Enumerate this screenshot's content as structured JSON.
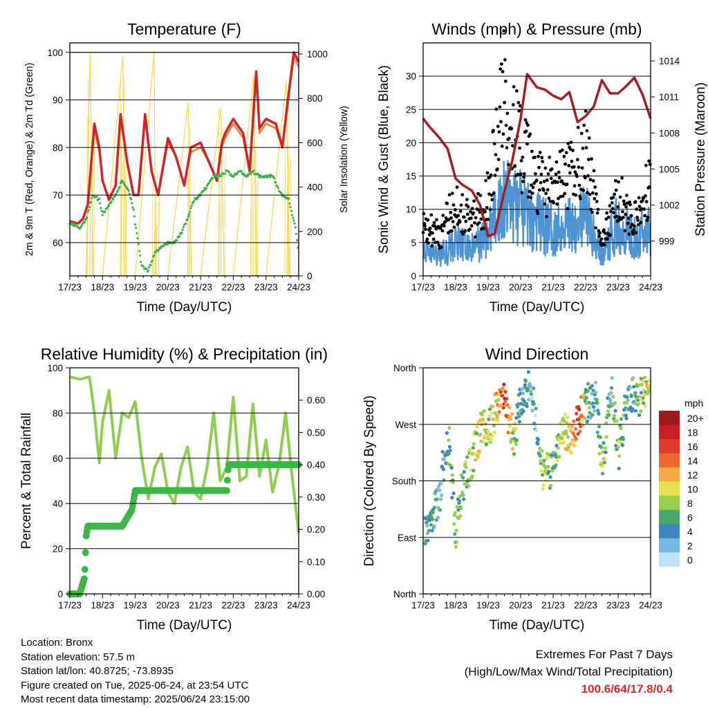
{
  "chart_data": [
    {
      "type": "line",
      "title": "Temperature (F)",
      "xlabel": "Time (Day/UTC)",
      "ylabel": "2m & 9m T (Red, Orange) & 2m Td (Green)",
      "ylabel_right": "Solar Insolation (Yellow)",
      "x_ticks": [
        "17/23",
        "18/23",
        "19/23",
        "20/23",
        "21/23",
        "22/23",
        "23/23",
        "24/23"
      ],
      "xlim": [
        0,
        7
      ],
      "ylim": [
        53,
        102
      ],
      "yticks": [
        60,
        70,
        80,
        90,
        100
      ],
      "ylim_right": [
        0,
        1050
      ],
      "yticks_right": [
        0,
        200,
        400,
        600,
        800,
        1000
      ],
      "grid": true,
      "colors": {
        "temp2m": "#d2232a",
        "temp9m": "#f07f2a",
        "dewpoint": "#3fae49",
        "solar": "#f6d84c"
      },
      "series": [
        {
          "key": "temp2m",
          "x": [
            0,
            0.25,
            0.4,
            0.55,
            0.75,
            0.9,
            1.0,
            1.2,
            1.4,
            1.55,
            1.75,
            1.95,
            2.1,
            2.3,
            2.5,
            2.7,
            3.0,
            3.25,
            3.5,
            3.7,
            4.0,
            4.25,
            4.5,
            4.65,
            4.75,
            5.0,
            5.3,
            5.5,
            5.7,
            5.8,
            6.0,
            6.3,
            6.5,
            6.65,
            6.85,
            7.0
          ],
          "y": [
            64.5,
            64,
            65,
            68,
            85,
            80,
            73,
            69,
            72,
            87,
            77,
            70,
            70,
            87,
            75,
            70,
            82,
            78,
            72,
            80,
            81,
            77,
            73,
            81,
            83,
            86,
            83,
            75,
            96,
            84,
            86,
            85,
            80,
            89,
            100,
            98
          ]
        },
        {
          "key": "temp9m",
          "x": [
            0,
            0.25,
            0.4,
            0.55,
            0.75,
            0.9,
            1.0,
            1.2,
            1.4,
            1.55,
            1.75,
            1.95,
            2.1,
            2.3,
            2.5,
            2.7,
            3.0,
            3.25,
            3.5,
            3.7,
            4.0,
            4.25,
            4.5,
            4.65,
            4.75,
            5.0,
            5.3,
            5.5,
            5.7,
            5.8,
            6.0,
            6.3,
            6.5,
            6.65,
            6.85,
            7.0
          ],
          "y": [
            64.5,
            64,
            65,
            68,
            84,
            79,
            73,
            69,
            72,
            86,
            77,
            70,
            70,
            86,
            75,
            70,
            81,
            78,
            72,
            79,
            80,
            77,
            73,
            80,
            82,
            85,
            82,
            75,
            95,
            83,
            85,
            84,
            80,
            88,
            99,
            97
          ]
        },
        {
          "key": "dewpoint",
          "x": [
            0,
            0.3,
            0.5,
            0.7,
            0.9,
            1.0,
            1.2,
            1.4,
            1.6,
            1.8,
            1.95,
            2.0,
            2.2,
            2.4,
            2.6,
            2.8,
            3.0,
            3.2,
            3.4,
            3.6,
            3.8,
            4.0,
            4.2,
            4.4,
            4.6,
            4.8,
            5.0,
            5.2,
            5.4,
            5.6,
            5.8,
            6.0,
            6.2,
            6.4,
            6.5,
            6.7,
            6.9,
            7.0
          ],
          "y": [
            64,
            63,
            65,
            70,
            69,
            66,
            68,
            70,
            73,
            71,
            67,
            64,
            55,
            54,
            58,
            59,
            60,
            60,
            62,
            65,
            69,
            70,
            72,
            74,
            74,
            75,
            74,
            75,
            74,
            75,
            74,
            74,
            74,
            71,
            70,
            69,
            63,
            58
          ]
        },
        {
          "key": "solar",
          "x": [
            0,
            0.5,
            0.62,
            0.72,
            1.0,
            1.62,
            1.72,
            2.0,
            2.58,
            2.62,
            3.0,
            3.62,
            3.72,
            4.0,
            4.62,
            4.72,
            5.0,
            5.62,
            5.72,
            6.0,
            6.62,
            6.72,
            7.0
          ],
          "y": [
            0,
            0,
            1000,
            0,
            0,
            990,
            0,
            0,
            1010,
            0,
            0,
            780,
            0,
            0,
            760,
            0,
            0,
            900,
            0,
            0,
            880,
            0,
            0
          ]
        }
      ]
    },
    {
      "type": "scatter",
      "title": "Winds (mph) & Pressure (mb)",
      "xlabel": "Time (Day/UTC)",
      "ylabel": "Sonic Wind & Gust (Blue, Black)",
      "ylabel_right": "Station Pressure (Maroon)",
      "x_ticks": [
        "17/23",
        "18/23",
        "19/23",
        "20/23",
        "21/23",
        "22/23",
        "23/23",
        "24/23"
      ],
      "xlim": [
        0,
        7
      ],
      "ylim": [
        0,
        35
      ],
      "yticks": [
        0,
        5,
        10,
        15,
        20,
        25,
        30
      ],
      "ylim_right": [
        996.1,
        1015.5
      ],
      "yticks_right": [
        999,
        1002,
        1005,
        1008,
        1011,
        1014
      ],
      "grid": true,
      "colors": {
        "wind": "#4f94d4",
        "gust": "#000000",
        "pressure": "#a31e22"
      },
      "series": [
        {
          "key": "wind",
          "x": [
            0,
            0.5,
            1.0,
            1.5,
            2.0,
            2.5,
            3.0,
            3.5,
            4.0,
            4.5,
            5.0,
            5.5,
            6.0,
            6.5,
            7.0
          ],
          "y": [
            4,
            3,
            5,
            4,
            6,
            12,
            10,
            8,
            7,
            8,
            9,
            3,
            8,
            6,
            7
          ]
        },
        {
          "key": "gust",
          "x": [
            0,
            0.5,
            1.0,
            1.5,
            2.0,
            2.3,
            2.5,
            3.0,
            3.5,
            4.0,
            4.5,
            5.0,
            5.5,
            6.0,
            6.5,
            7.0
          ],
          "y": [
            8,
            6,
            11,
            8,
            12,
            21,
            28,
            19,
            14,
            13,
            15,
            19,
            5,
            12,
            8,
            14
          ]
        },
        {
          "key": "pressure",
          "x": [
            0,
            0.2,
            0.5,
            0.75,
            1.0,
            1.2,
            1.5,
            1.75,
            2.0,
            2.2,
            2.5,
            2.75,
            3.0,
            3.2,
            3.5,
            3.75,
            4.0,
            4.25,
            4.5,
            4.75,
            5.0,
            5.25,
            5.5,
            5.75,
            6.0,
            6.25,
            6.5,
            6.75,
            7.0
          ],
          "y": [
            1009.2,
            1008.5,
            1007.6,
            1006.7,
            1004.2,
            1003.7,
            1003.2,
            1002.0,
            999.4,
            999.6,
            1003.1,
            1005.8,
            1009.2,
            1012.9,
            1011.8,
            1011.6,
            1011.1,
            1010.8,
            1011.4,
            1008.9,
            1009.4,
            1010.2,
            1012.4,
            1011.3,
            1011.3,
            1011.9,
            1012.6,
            1011.2,
            1009.2
          ]
        }
      ]
    },
    {
      "type": "line",
      "title": "Relative Humidity (%) & Precipitation (in)",
      "xlabel": "Time (Day/UTC)",
      "ylabel": "Percent & Total Rainfall",
      "x_ticks": [
        "17/23",
        "18/23",
        "19/23",
        "20/23",
        "21/23",
        "22/23",
        "23/23",
        "24/23"
      ],
      "xlim": [
        0,
        7
      ],
      "ylim": [
        0,
        100
      ],
      "yticks": [
        0,
        20,
        40,
        60,
        80,
        100
      ],
      "ylim_right": [
        0,
        0.7
      ],
      "yticks_right": [
        "0.00",
        "0.10",
        "0.20",
        "0.30",
        "0.40",
        "0.50",
        "0.60"
      ],
      "grid": true,
      "colors": {
        "rh": "#8fcd4f",
        "precip": "#3fb548"
      },
      "series": [
        {
          "key": "rh",
          "x": [
            0,
            0.3,
            0.6,
            0.75,
            0.9,
            1.0,
            1.2,
            1.4,
            1.6,
            1.8,
            2.0,
            2.2,
            2.4,
            2.6,
            2.8,
            3.0,
            3.2,
            3.4,
            3.6,
            3.8,
            4.0,
            4.2,
            4.4,
            4.6,
            4.8,
            5.0,
            5.2,
            5.4,
            5.6,
            5.8,
            6.0,
            6.2,
            6.4,
            6.6,
            6.8,
            7.0
          ],
          "y": [
            96,
            95,
            96,
            80,
            58,
            76,
            90,
            60,
            80,
            78,
            85,
            60,
            42,
            56,
            62,
            45,
            40,
            56,
            65,
            45,
            42,
            56,
            80,
            50,
            56,
            87,
            50,
            52,
            84,
            52,
            68,
            45,
            57,
            80,
            52,
            27
          ]
        },
        {
          "key": "precip",
          "x": [
            0,
            0.3,
            0.45,
            0.5,
            0.55,
            0.8,
            1.6,
            1.9,
            2.0,
            2.5,
            3.0,
            3.5,
            4.0,
            4.5,
            4.8,
            4.85,
            5.0,
            5.5,
            6.0,
            6.5,
            7.0
          ],
          "y": [
            0.0,
            0.0,
            0.05,
            0.18,
            0.21,
            0.21,
            0.21,
            0.26,
            0.32,
            0.32,
            0.32,
            0.32,
            0.32,
            0.32,
            0.32,
            0.4,
            0.4,
            0.4,
            0.4,
            0.4,
            0.4
          ]
        }
      ]
    },
    {
      "type": "scatter",
      "title": "Wind Direction",
      "xlabel": "Time (Day/UTC)",
      "ylabel": "Direction (Colored By Speed)",
      "x_ticks": [
        "17/23",
        "18/23",
        "19/23",
        "20/23",
        "21/23",
        "22/23",
        "23/23",
        "24/23"
      ],
      "xlim": [
        0,
        7
      ],
      "ylim": [
        0,
        360
      ],
      "y_tick_labels": [
        "North",
        "East",
        "South",
        "West",
        "North"
      ],
      "grid": true,
      "legend": {
        "title": "mph",
        "labels": [
          "20+",
          "18",
          "16",
          "14",
          "12",
          "10",
          "8",
          "6",
          "4",
          "2",
          "0"
        ],
        "colors": [
          "#9b1a1d",
          "#c81f25",
          "#de3b2d",
          "#ef6a2f",
          "#f9a845",
          "#e6e14f",
          "#9bcd4f",
          "#48a966",
          "#3d84c2",
          "#79b7e4",
          "#bde3f5"
        ]
      },
      "series": [
        {
          "name": "",
          "x": [
            0.1,
            0.3,
            0.5,
            0.6,
            0.8,
            1.0,
            1.2,
            1.5,
            1.8,
            2.0,
            2.3,
            2.5,
            2.8,
            3.0,
            3.3,
            3.5,
            3.7,
            4.0,
            4.3,
            4.6,
            4.8,
            5.0,
            5.3,
            5.5,
            5.8,
            6.0,
            6.3,
            6.6,
            6.9
          ],
          "y": [
            95,
            130,
            150,
            200,
            240,
            100,
            170,
            210,
            270,
            260,
            300,
            305,
            250,
            310,
            330,
            270,
            190,
            200,
            260,
            250,
            280,
            300,
            320,
            200,
            340,
            220,
            320,
            310,
            330
          ],
          "speed": [
            4,
            4,
            3,
            4,
            6,
            6,
            6,
            8,
            10,
            8,
            12,
            16,
            8,
            4,
            4,
            2,
            10,
            4,
            10,
            10,
            16,
            6,
            4,
            8,
            4,
            8,
            4,
            6,
            10
          ]
        }
      ]
    }
  ],
  "footer": {
    "location": "Location: Bronx",
    "elevation": "Station elevation: 57.5 m",
    "latlon": "Station lat/lon: 40.8725; -73.8935",
    "created": "Figure created on Tue, 2025-06-24, at 23:54 UTC",
    "timestamp": "Most recent data timestamp: 2025/06/24 23:15:00"
  },
  "extremes": {
    "title": "Extremes For Past 7 Days",
    "subtitle": "(High/Low/Max Wind/Total Precipitation)",
    "values": "100.6/64/17.8/0.4"
  }
}
